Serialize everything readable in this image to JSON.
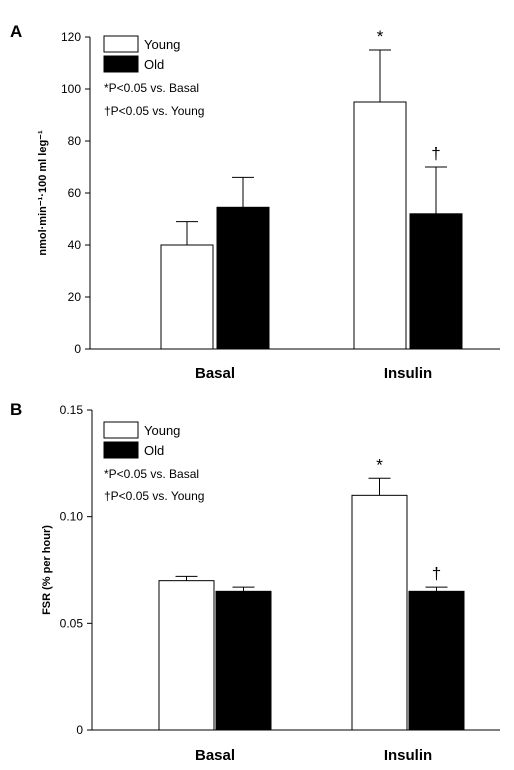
{
  "chart_data": [
    {
      "type": "bar",
      "panel": "A",
      "categories": [
        "Basal",
        "Insulin"
      ],
      "series": [
        {
          "name": "Young",
          "color": "#ffffff",
          "values": [
            40,
            95
          ],
          "errors": [
            9,
            20
          ]
        },
        {
          "name": "Old",
          "color": "#000000",
          "values": [
            54.5,
            52
          ],
          "errors": [
            11.5,
            18
          ]
        }
      ],
      "ylabel": "nmol·min⁻¹·100 ml leg⁻¹",
      "ylim": [
        0,
        120
      ],
      "yticks": [
        "0",
        "20",
        "40",
        "60",
        "80",
        "100",
        "120"
      ],
      "legend": "top-left",
      "notes": [
        "*P<0.05 vs. Basal",
        "†P<0.05 vs. Young"
      ],
      "annotations": [
        {
          "category": "Insulin",
          "series": "Young",
          "symbol": "*"
        },
        {
          "category": "Insulin",
          "series": "Old",
          "symbol": "†"
        }
      ]
    },
    {
      "type": "bar",
      "panel": "B",
      "categories": [
        "Basal",
        "Insulin"
      ],
      "series": [
        {
          "name": "Young",
          "color": "#ffffff",
          "values": [
            0.07,
            0.11
          ],
          "errors": [
            0.002,
            0.008
          ]
        },
        {
          "name": "Old",
          "color": "#000000",
          "values": [
            0.065,
            0.065
          ],
          "errors": [
            0.002,
            0.002
          ]
        }
      ],
      "ylabel": "FSR (% per hour)",
      "ylim": [
        0,
        0.15
      ],
      "yticks": [
        "0",
        "0.05",
        "0.10",
        "0.15"
      ],
      "legend": "top-left",
      "notes": [
        "*P<0.05 vs. Basal",
        "†P<0.05 vs. Young"
      ],
      "annotations": [
        {
          "category": "Insulin",
          "series": "Young",
          "symbol": "*"
        },
        {
          "category": "Insulin",
          "series": "Old",
          "symbol": "†"
        }
      ]
    }
  ]
}
